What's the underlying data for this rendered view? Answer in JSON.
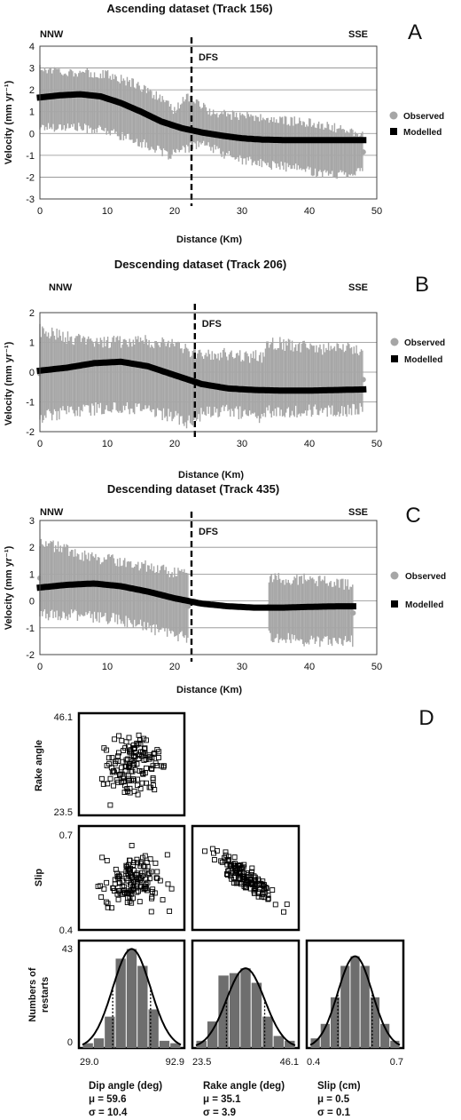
{
  "chart_data": [
    {
      "id": "A",
      "type": "line",
      "panel_letter": "A",
      "title": "Ascending dataset (Track 156)",
      "xlabel": "Distance (Km)",
      "ylabel": "Velocity (mm yr⁻¹)",
      "xlim": [
        0,
        50
      ],
      "ylim": [
        -3,
        4
      ],
      "xticks": [
        0,
        10,
        20,
        30,
        40,
        50
      ],
      "yticks": [
        -3,
        -2,
        -1,
        0,
        1,
        2,
        3,
        4
      ],
      "grid": "horizontal",
      "corner_left": "NNW",
      "corner_right": "SSE",
      "marker_label": "DFS",
      "marker_x": 22.5,
      "legend": [
        "Observed",
        "Modelled"
      ],
      "legend_position": "right",
      "observed_band": {
        "x": [
          0,
          5,
          10,
          14,
          17,
          19,
          20,
          21,
          22,
          23,
          24,
          25,
          27,
          30,
          33,
          36,
          40,
          43,
          46,
          48
        ],
        "low": [
          0.3,
          0.3,
          0.1,
          -0.3,
          -0.7,
          -1.0,
          -0.9,
          -0.8,
          -0.7,
          -0.5,
          -0.5,
          -0.6,
          -0.9,
          -1.2,
          -1.4,
          -1.5,
          -1.7,
          -1.9,
          -1.8,
          -1.7
        ],
        "high": [
          3.0,
          2.8,
          2.7,
          2.3,
          1.8,
          1.3,
          1.0,
          1.5,
          1.7,
          1.6,
          1.3,
          1.0,
          0.9,
          0.8,
          0.7,
          0.6,
          0.5,
          0.3,
          0.1,
          0.0
        ]
      },
      "modelled": {
        "x": [
          0,
          3,
          6,
          9,
          12,
          15,
          18,
          21,
          24,
          27,
          30,
          33,
          36,
          40,
          44,
          48
        ],
        "y": [
          1.65,
          1.75,
          1.8,
          1.7,
          1.4,
          1.0,
          0.55,
          0.25,
          0.05,
          -0.1,
          -0.22,
          -0.28,
          -0.3,
          -0.3,
          -0.3,
          -0.3
        ]
      }
    },
    {
      "id": "B",
      "type": "line",
      "panel_letter": "B",
      "title": "Descending dataset (Track 206)",
      "xlabel": "Distance (Km)",
      "ylabel": "Velocity (mm yr⁻¹)",
      "xlim": [
        0,
        50
      ],
      "ylim": [
        -2,
        2
      ],
      "xticks": [
        0,
        10,
        20,
        30,
        40,
        50
      ],
      "yticks": [
        -2,
        -1,
        0,
        1,
        2
      ],
      "grid": "horizontal",
      "corner_left": "NNW",
      "corner_right": "SSE",
      "marker_label": "DFS",
      "marker_x": 23,
      "legend": [
        "Observed",
        "Modelled"
      ],
      "legend_position": "right",
      "observed_band": {
        "x": [
          0,
          5,
          10,
          15,
          20,
          22,
          24,
          28,
          33,
          34,
          38,
          42,
          46,
          48
        ],
        "low": [
          -1.5,
          -1.3,
          -1.2,
          -1.2,
          -1.5,
          -1.7,
          -1.4,
          -1.3,
          -1.5,
          -1.3,
          -1.3,
          -1.3,
          -1.3,
          -1.2
        ],
        "high": [
          1.4,
          1.1,
          1.0,
          1.1,
          0.9,
          0.7,
          0.6,
          0.6,
          0.5,
          1.0,
          0.9,
          0.8,
          0.8,
          0.7
        ]
      },
      "modelled": {
        "x": [
          0,
          4,
          8,
          12,
          16,
          20,
          24,
          28,
          32,
          36,
          40,
          44,
          48
        ],
        "y": [
          0.05,
          0.15,
          0.3,
          0.35,
          0.2,
          -0.1,
          -0.4,
          -0.55,
          -0.6,
          -0.62,
          -0.62,
          -0.6,
          -0.58
        ]
      }
    },
    {
      "id": "C",
      "type": "line",
      "panel_letter": "C",
      "title": "Descending dataset (Track 435)",
      "xlabel": "Distance (Km)",
      "ylabel": "Velocity (mm yr⁻¹)",
      "xlim": [
        0,
        50
      ],
      "ylim": [
        -2,
        3
      ],
      "xticks": [
        0,
        10,
        20,
        30,
        40,
        50
      ],
      "yticks": [
        -2,
        -1,
        0,
        1,
        2,
        3
      ],
      "grid": "horizontal",
      "corner_left": "NNW",
      "corner_right": "SSE",
      "marker_label": "DFS",
      "marker_x": 22.5,
      "legend": [
        "Observed",
        "Modelled"
      ],
      "legend_position": "right",
      "observed_band_segments": [
        {
          "x": [
            0,
            4,
            8,
            12,
            16,
            19,
            22
          ],
          "low": [
            -0.5,
            -0.5,
            -0.6,
            -0.7,
            -1.0,
            -1.2,
            -1.4
          ],
          "high": [
            2.2,
            1.9,
            1.6,
            1.5,
            1.3,
            1.1,
            1.0
          ]
        },
        {
          "x": [
            34,
            37,
            40,
            43,
            46.5
          ],
          "low": [
            -1.3,
            -1.4,
            -1.5,
            -1.5,
            -1.5
          ],
          "high": [
            0.9,
            0.8,
            0.8,
            0.7,
            0.6
          ]
        }
      ],
      "modelled": {
        "x": [
          0,
          4,
          8,
          12,
          16,
          20,
          24,
          28,
          32,
          36,
          40,
          44,
          46.5
        ],
        "y": [
          0.5,
          0.6,
          0.65,
          0.55,
          0.35,
          0.1,
          -0.1,
          -0.2,
          -0.25,
          -0.25,
          -0.22,
          -0.2,
          -0.2
        ]
      }
    },
    {
      "id": "D",
      "type": "scatter",
      "panel_letter": "D",
      "rake_label": "Rake angle",
      "slip_label": "Slip",
      "hist_ylabel": "Numbers of\nrestarts",
      "rake_ticks": [
        "46.1",
        "23.5"
      ],
      "slip_ticks": [
        "0.7",
        "0.4"
      ],
      "hist_ticks": [
        "43",
        "0"
      ],
      "columns": [
        {
          "label": "Dip angle (deg)",
          "range_labels": [
            "29.0",
            "92.9"
          ],
          "mu": "μ = 59.6",
          "sigma": "σ = 10.4",
          "hist": [
            2,
            4,
            13,
            37,
            41,
            34,
            16,
            3,
            2
          ]
        },
        {
          "label": "Rake angle (deg)",
          "range_labels": [
            "23.5",
            "46.1"
          ],
          "mu": "μ = 35.1",
          "sigma": "σ = 3.9",
          "hist": [
            3,
            11,
            30,
            31,
            33,
            27,
            13,
            5,
            3
          ]
        },
        {
          "label": "Slip (cm)",
          "range_labels": [
            "0.4",
            "0.7"
          ],
          "mu": "μ = 0.5",
          "sigma": "σ = 0.1",
          "hist": [
            4,
            10,
            21,
            34,
            38,
            34,
            21,
            10,
            3
          ]
        }
      ]
    }
  ],
  "colors": {
    "observed": "#a6a6a6",
    "modelled": "#000000",
    "grid": "#8c8c8c",
    "bar": "#6e6e6e"
  }
}
